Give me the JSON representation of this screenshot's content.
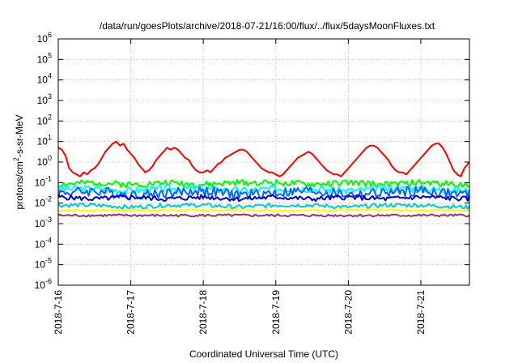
{
  "chart_data": {
    "type": "line",
    "title": "/data/run/goesPlots/archive/2018-07-21/16:00/flux/../flux/5daysMoonFluxes.txt",
    "xlabel": "Coordinated Universal Time (UTC)",
    "ylabel": {
      "pre": "protons/cm",
      "sup": "2",
      "post": "-s-sr-MeV"
    },
    "yscale": "log",
    "ylim": [
      -6,
      6
    ],
    "y_ticks": [
      {
        "base": "10",
        "exp": "-6"
      },
      {
        "base": "10",
        "exp": "-5"
      },
      {
        "base": "10",
        "exp": "-4"
      },
      {
        "base": "10",
        "exp": "-3"
      },
      {
        "base": "10",
        "exp": "-2"
      },
      {
        "base": "10",
        "exp": "-1"
      },
      {
        "base": "10",
        "exp": "0"
      },
      {
        "base": "10",
        "exp": "1"
      },
      {
        "base": "10",
        "exp": "2"
      },
      {
        "base": "10",
        "exp": "3"
      },
      {
        "base": "10",
        "exp": "4"
      },
      {
        "base": "10",
        "exp": "5"
      },
      {
        "base": "10",
        "exp": "6"
      }
    ],
    "x_ticks": [
      "2018-7-16",
      "2018-7-17",
      "2018-7-18",
      "2018-7-19",
      "2018-7-20",
      "2018-7-21"
    ],
    "x_tick_days": [
      0,
      1,
      2,
      3,
      4,
      5
    ],
    "xlim_days": [
      0,
      5.67
    ],
    "grid": true,
    "series": [
      {
        "color": "#ff0000",
        "days": [
          0.0,
          0.05,
          0.1,
          0.15,
          0.2,
          0.25,
          0.3,
          0.35,
          0.4,
          0.45,
          0.5,
          0.55,
          0.6,
          0.65,
          0.7,
          0.75,
          0.8,
          0.85,
          0.9,
          0.95,
          1.0,
          1.05,
          1.1,
          1.15,
          1.2,
          1.25,
          1.3,
          1.35,
          1.4,
          1.45,
          1.5,
          1.55,
          1.6,
          1.65,
          1.7,
          1.75,
          1.8,
          1.85,
          1.9,
          1.95,
          2.0,
          2.05,
          2.1,
          2.15,
          2.2,
          2.25,
          2.3,
          2.35,
          2.4,
          2.45,
          2.5,
          2.55,
          2.6,
          2.65,
          2.7,
          2.75,
          2.8,
          2.85,
          2.9,
          2.95,
          3.0,
          3.05,
          3.1,
          3.15,
          3.2,
          3.25,
          3.3,
          3.35,
          3.4,
          3.45,
          3.5,
          3.55,
          3.6,
          3.65,
          3.7,
          3.75,
          3.8,
          3.85,
          3.9,
          3.95,
          4.0,
          4.05,
          4.1,
          4.15,
          4.2,
          4.25,
          4.3,
          4.35,
          4.4,
          4.45,
          4.5,
          4.55,
          4.6,
          4.65,
          4.7,
          4.75,
          4.8,
          4.85,
          4.9,
          4.95,
          5.0,
          5.05,
          5.1,
          5.15,
          5.2,
          5.25,
          5.3,
          5.35,
          5.4,
          5.45,
          5.5,
          5.55,
          5.6,
          5.67
        ],
        "log10_values": [
          0.7,
          0.6,
          0.3,
          -0.3,
          -0.5,
          -0.6,
          -0.7,
          -0.5,
          -0.6,
          -0.4,
          -0.3,
          -0.1,
          0.2,
          0.5,
          0.7,
          0.9,
          1.0,
          0.8,
          0.9,
          0.6,
          0.4,
          0.2,
          -0.1,
          -0.3,
          -0.5,
          -0.4,
          -0.2,
          0.1,
          0.3,
          0.5,
          0.7,
          0.6,
          0.7,
          0.6,
          0.4,
          0.2,
          0.1,
          -0.2,
          -0.4,
          -0.5,
          -0.5,
          -0.4,
          -0.5,
          -0.3,
          -0.1,
          0.0,
          0.2,
          0.3,
          0.4,
          0.5,
          0.6,
          0.6,
          0.5,
          0.3,
          0.1,
          -0.1,
          -0.3,
          -0.4,
          -0.5,
          -0.5,
          -0.6,
          -0.7,
          -0.6,
          -0.4,
          -0.2,
          0.0,
          0.2,
          0.3,
          0.4,
          0.5,
          0.4,
          0.2,
          0.0,
          -0.2,
          -0.4,
          -0.5,
          -0.6,
          -0.6,
          -0.7,
          -0.5,
          -0.3,
          -0.1,
          0.1,
          0.3,
          0.5,
          0.7,
          0.8,
          0.8,
          0.7,
          0.5,
          0.3,
          0.1,
          -0.2,
          -0.4,
          -0.5,
          -0.5,
          -0.6,
          -0.4,
          -0.2,
          0.0,
          0.2,
          0.4,
          0.6,
          0.8,
          0.9,
          0.9,
          0.7,
          0.4,
          0.0,
          -0.4,
          -0.6,
          -0.7,
          -0.3,
          0.0,
          0.1,
          0.3,
          0.4
        ]
      },
      {
        "color": "#00ff00",
        "days": [
          0.0,
          0.5,
          1.0,
          1.5,
          2.0,
          2.5,
          3.0,
          3.5,
          4.0,
          4.5,
          5.0,
          5.67
        ],
        "log10_values": [
          -1.1,
          -1.0,
          -1.1,
          -1.0,
          -1.1,
          -1.0,
          -1.0,
          -1.1,
          -1.0,
          -1.1,
          -1.0,
          -1.1
        ],
        "noise": 0.15,
        "seed": 2
      },
      {
        "color": "#00ffff",
        "days": [
          0.0,
          0.5,
          1.0,
          1.5,
          2.0,
          2.5,
          3.0,
          3.5,
          4.0,
          4.5,
          5.0,
          5.67
        ],
        "log10_values": [
          -1.3,
          -1.3,
          -1.4,
          -1.3,
          -1.3,
          -1.4,
          -1.3,
          -1.3,
          -1.4,
          -1.3,
          -1.3,
          -1.4
        ],
        "noise": 0.18,
        "seed": 3
      },
      {
        "color": "#0066ff",
        "days": [
          0.0,
          0.5,
          1.0,
          1.5,
          2.0,
          2.5,
          3.0,
          3.5,
          4.0,
          4.5,
          5.0,
          5.67
        ],
        "log10_values": [
          -1.5,
          -1.4,
          -1.6,
          -1.5,
          -1.4,
          -1.6,
          -1.5,
          -1.4,
          -1.6,
          -1.5,
          -1.4,
          -1.6
        ],
        "noise": 0.25,
        "seed": 4
      },
      {
        "color": "#0000cc",
        "days": [
          0.0,
          0.5,
          1.0,
          1.5,
          2.0,
          2.5,
          3.0,
          3.5,
          4.0,
          4.5,
          5.0,
          5.67
        ],
        "log10_values": [
          -1.7,
          -1.8,
          -1.7,
          -1.8,
          -1.7,
          -1.8,
          -1.7,
          -1.8,
          -1.7,
          -1.8,
          -1.7,
          -1.8
        ],
        "noise": 0.12,
        "seed": 5
      },
      {
        "color": "#00cccc",
        "days": [
          0.0,
          0.5,
          1.0,
          1.5,
          2.0,
          2.5,
          3.0,
          3.5,
          4.0,
          4.5,
          5.0,
          5.67
        ],
        "log10_values": [
          -2.1,
          -2.1,
          -2.2,
          -2.1,
          -2.1,
          -2.2,
          -2.1,
          -2.1,
          -2.2,
          -2.1,
          -2.1,
          -2.2
        ],
        "noise": 0.1,
        "seed": 6
      },
      {
        "color": "#ffff00",
        "days": [
          0.0,
          0.5,
          1.0,
          1.5,
          2.0,
          2.5,
          3.0,
          3.5,
          4.0,
          4.5,
          5.0,
          5.67
        ],
        "log10_values": [
          -2.35,
          -2.35,
          -2.35,
          -2.35,
          -2.35,
          -2.35,
          -2.35,
          -2.35,
          -2.35,
          -2.35,
          -2.35,
          -2.35
        ],
        "noise": 0.04,
        "seed": 7
      },
      {
        "color": "#993366",
        "days": [
          0.0,
          0.5,
          1.0,
          1.5,
          2.0,
          2.5,
          3.0,
          3.5,
          4.0,
          4.5,
          5.0,
          5.67
        ],
        "log10_values": [
          -2.6,
          -2.6,
          -2.6,
          -2.6,
          -2.6,
          -2.6,
          -2.6,
          -2.6,
          -2.6,
          -2.6,
          -2.6,
          -2.6
        ],
        "noise": 0.06,
        "seed": 8
      }
    ]
  }
}
